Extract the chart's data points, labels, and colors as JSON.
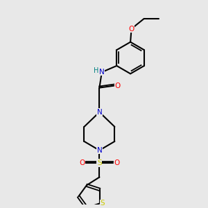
{
  "bg_color": "#e8e8e8",
  "bond_color": "#000000",
  "atom_colors": {
    "N": "#0000cc",
    "O": "#ff0000",
    "S_sulfonyl": "#cccc00",
    "S_thio": "#cccc00",
    "H": "#008080",
    "C": "#000000"
  },
  "figsize": [
    3.0,
    3.0
  ],
  "dpi": 100
}
